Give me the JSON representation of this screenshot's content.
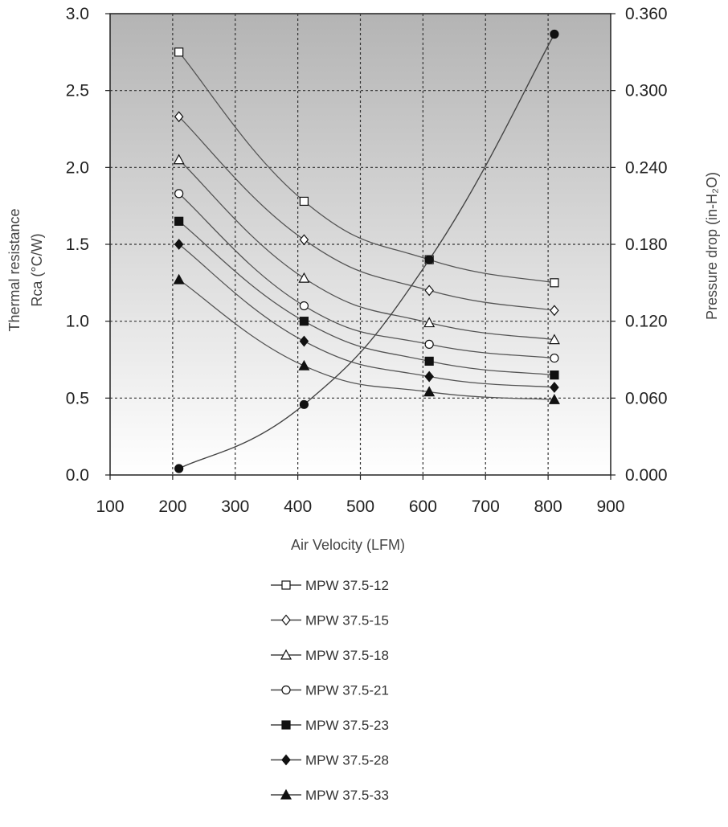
{
  "chart_data": {
    "type": "line",
    "xlabel": "Air Velocity (LFM)",
    "ylabel_left_line1": "Thermal resistance",
    "ylabel_left_line2": "Rca (°C/W)",
    "ylabel_right": "Pressure drop (in-H₂O)",
    "xlim": [
      100,
      900
    ],
    "x_ticks": [
      100,
      200,
      300,
      400,
      500,
      600,
      700,
      800,
      900
    ],
    "ylim_left": [
      0.0,
      3.0
    ],
    "y_ticks_left": [
      "0.0",
      "0.5",
      "1.0",
      "1.5",
      "2.0",
      "2.5",
      "3.0"
    ],
    "ylim_right": [
      0.0,
      0.36
    ],
    "y_ticks_right": [
      "0.000",
      "0.060",
      "0.120",
      "0.180",
      "0.240",
      "0.300",
      "0.360"
    ],
    "grid": true,
    "legend_position": "bottom",
    "background_gradient": [
      "#b4b4b4",
      "#ffffff"
    ],
    "series": [
      {
        "name": "MPW 37.5-12",
        "marker": "square-open",
        "x": [
          210,
          410,
          610,
          810
        ],
        "y": [
          2.75,
          1.78,
          1.4,
          1.25
        ]
      },
      {
        "name": "MPW 37.5-15",
        "marker": "diamond-open",
        "x": [
          210,
          410,
          610,
          810
        ],
        "y": [
          2.33,
          1.53,
          1.2,
          1.07
        ]
      },
      {
        "name": "MPW 37.5-18",
        "marker": "triangle-open",
        "x": [
          210,
          410,
          610,
          810
        ],
        "y": [
          2.05,
          1.28,
          0.99,
          0.88
        ]
      },
      {
        "name": "MPW 37.5-21",
        "marker": "circle-open",
        "x": [
          210,
          410,
          610,
          810
        ],
        "y": [
          1.83,
          1.1,
          0.85,
          0.76
        ]
      },
      {
        "name": "MPW 37.5-23",
        "marker": "square-filled",
        "x": [
          210,
          410,
          610,
          810
        ],
        "y": [
          1.65,
          1.0,
          0.74,
          0.65
        ]
      },
      {
        "name": "MPW 37.5-28",
        "marker": "diamond-filled",
        "x": [
          210,
          410,
          610,
          810
        ],
        "y": [
          1.5,
          0.87,
          0.64,
          0.57
        ]
      },
      {
        "name": "MPW 37.5-33",
        "marker": "triangle-filled",
        "x": [
          210,
          410,
          610,
          810
        ],
        "y": [
          1.27,
          0.71,
          0.54,
          0.49
        ]
      }
    ],
    "pressure_series": {
      "axis": "right",
      "marker": "circle-filled",
      "x": [
        210,
        410,
        610,
        810
      ],
      "y": [
        0.005,
        0.055,
        0.168,
        0.344
      ]
    }
  }
}
